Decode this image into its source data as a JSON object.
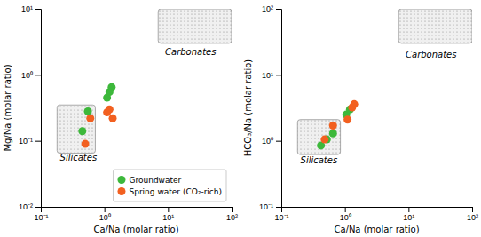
{
  "chart_data": [
    {
      "type": "scatter",
      "x_label": "Ca/Na (molar ratio)",
      "y_label": "Mg/Na (molar ratio)",
      "log": true,
      "grid": false,
      "legend": "lower right",
      "xlim": [
        0.1,
        100
      ],
      "ylim": [
        0.01,
        10
      ],
      "xticks": [
        {
          "value": 0.1,
          "label": "10⁻¹"
        },
        {
          "value": 1,
          "label": "10⁰"
        },
        {
          "value": 10,
          "label": "10¹"
        },
        {
          "value": 100,
          "label": "10²"
        }
      ],
      "yticks": [
        {
          "value": 0.01,
          "label": "10⁻²"
        },
        {
          "value": 0.1,
          "label": "10⁻¹"
        },
        {
          "value": 1,
          "label": "10⁰"
        },
        {
          "value": 10,
          "label": "10¹"
        }
      ],
      "series": [
        {
          "name": "Groundwater",
          "color": "#3db83b",
          "x": [
            0.45,
            0.55,
            1.1,
            1.2,
            1.3
          ],
          "values": [
            0.14,
            0.28,
            0.45,
            0.55,
            0.65
          ]
        },
        {
          "name": "Spring water (CO₂-rich)",
          "color": "#f26020",
          "x": [
            0.5,
            0.6,
            1.1,
            1.2,
            1.35
          ],
          "values": [
            0.09,
            0.22,
            0.27,
            0.3,
            0.22
          ]
        }
      ],
      "regions": [
        {
          "x": [
            0.18,
            0.72
          ],
          "y": [
            0.065,
            0.35
          ]
        },
        {
          "x": [
            7.0,
            100
          ],
          "y": [
            3.0,
            10
          ]
        }
      ],
      "annotations": [
        {
          "text": "Silicates",
          "x": 0.2,
          "y": 0.05
        },
        {
          "text": "Carbonates",
          "x": 9.0,
          "y": 2.0
        }
      ]
    },
    {
      "type": "scatter",
      "x_label": "Ca/Na (molar ratio)",
      "y_label": "HCO₃/Na (molar ratio)",
      "log": true,
      "grid": false,
      "xlim": [
        0.1,
        100
      ],
      "ylim": [
        0.1,
        100
      ],
      "xticks": [
        {
          "value": 0.1,
          "label": "10⁻¹"
        },
        {
          "value": 1,
          "label": "10⁰"
        },
        {
          "value": 10,
          "label": "10¹"
        },
        {
          "value": 100,
          "label": "10²"
        }
      ],
      "yticks": [
        {
          "value": 0.1,
          "label": "10⁻¹"
        },
        {
          "value": 1,
          "label": "10⁰"
        },
        {
          "value": 10,
          "label": "10¹"
        },
        {
          "value": 100,
          "label": "10²"
        }
      ],
      "series": [
        {
          "color": "#3db83b",
          "x": [
            0.42,
            0.52,
            0.65,
            1.05,
            1.2
          ],
          "values": [
            0.85,
            1.05,
            1.3,
            2.5,
            3.0
          ]
        },
        {
          "color": "#f26020",
          "x": [
            0.48,
            0.65,
            1.1,
            1.3,
            1.4
          ],
          "values": [
            1.05,
            1.7,
            2.1,
            3.2,
            3.6
          ]
        }
      ],
      "regions": [
        {
          "x": [
            0.18,
            0.85
          ],
          "y": [
            0.62,
            2.1
          ]
        },
        {
          "x": [
            7.0,
            100
          ],
          "y": [
            30,
            100
          ]
        }
      ],
      "annotations": [
        {
          "text": "Silicates",
          "x": 0.2,
          "y": 0.45
        },
        {
          "text": "Carbonates",
          "x": 9.0,
          "y": 18
        }
      ]
    }
  ]
}
